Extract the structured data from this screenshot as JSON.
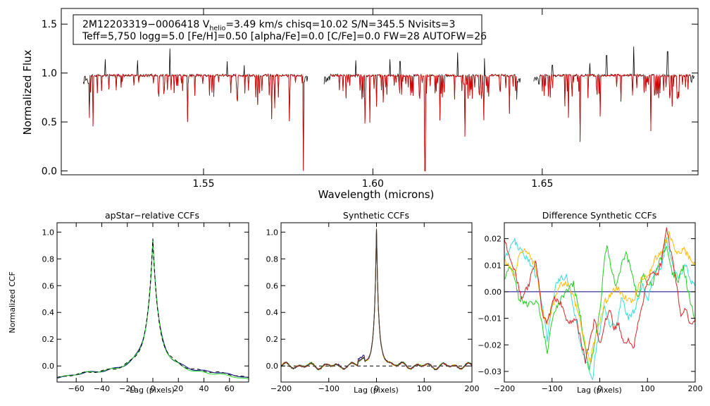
{
  "chart_data": [
    {
      "type": "line",
      "id": "spectrum",
      "title": "",
      "xlabel": "Wavelength (microns)",
      "ylabel": "Normalized Flux",
      "xlim": [
        1.508,
        1.696
      ],
      "ylim": [
        -0.04,
        1.66
      ],
      "xticks": [
        1.55,
        1.6,
        1.65
      ],
      "xtick_labels": [
        "1.55",
        "1.60",
        "1.65"
      ],
      "yticks": [
        0.0,
        0.5,
        1.0,
        1.5
      ],
      "ytick_labels": [
        "0.0",
        "0.5",
        "1.0",
        "1.5"
      ],
      "info_line1": {
        "a": "2M12203319−0006418  V",
        "sub": "helio",
        "b": "=3.49 km/s  chisq=10.02  S/N=345.5  Nvisits=3"
      },
      "info_line2": "Teff=5,750 logg=5.0 [Fe/H]=0.50 [alpha/Fe]=0.0 [C/Fe]=0.0 FW=28 AUTOFW=26",
      "chips": [
        [
          1.5145,
          1.5808
        ],
        [
          1.5856,
          1.6437
        ],
        [
          1.6475,
          1.695
        ]
      ],
      "deep_absorptions": [
        1.5795,
        1.58,
        1.6154,
        1.6433
      ],
      "emission_spikes": [
        [
          1.521,
          1.14
        ],
        [
          1.5305,
          1.13
        ],
        [
          1.54,
          1.25
        ],
        [
          1.557,
          1.12
        ],
        [
          1.562,
          1.08
        ],
        [
          1.595,
          1.13
        ],
        [
          1.605,
          1.14
        ],
        [
          1.608,
          1.12
        ],
        [
          1.625,
          1.21
        ],
        [
          1.633,
          1.15
        ],
        [
          1.653,
          1.08
        ],
        [
          1.664,
          1.1
        ],
        [
          1.669,
          1.18
        ],
        [
          1.677,
          1.27
        ],
        [
          1.687,
          1.22
        ]
      ],
      "series": [
        {
          "name": "observed",
          "color": "#000000"
        },
        {
          "name": "model",
          "color": "#dd0000"
        }
      ]
    },
    {
      "type": "line",
      "id": "apstar_ccf",
      "title": "apStar−relative CCFs",
      "xlabel": "Lag (pixels)",
      "ylabel": "Normalized CCF",
      "xlim": [
        -75,
        75
      ],
      "ylim": [
        -0.12,
        1.07
      ],
      "xticks": [
        -60,
        -40,
        -20,
        0,
        20,
        40,
        60
      ],
      "xtick_labels": [
        "−60",
        "−40",
        "−20",
        "0",
        "20",
        "40",
        "60"
      ],
      "yticks": [
        0.0,
        0.2,
        0.4,
        0.6,
        0.8,
        1.0
      ],
      "ytick_labels": [
        "0.0",
        "0.2",
        "0.4",
        "0.6",
        "0.8",
        "1.0"
      ],
      "series": [
        {
          "name": "ccf-blue",
          "color": "#00008b",
          "peak": 1.0
        },
        {
          "name": "ccf-green",
          "color": "#22dd22",
          "peak": 0.99
        },
        {
          "name": "ccf-combined",
          "color": "#000000",
          "dashed": true,
          "peak": 0.995
        }
      ]
    },
    {
      "type": "line",
      "id": "synthetic_ccf",
      "title": "Synthetic CCFs",
      "xlabel": "Lag (pixels)",
      "ylabel": "",
      "xlim": [
        -200,
        200
      ],
      "ylim": [
        -0.12,
        1.07
      ],
      "xticks": [
        -200,
        -100,
        0,
        100,
        200
      ],
      "xtick_labels": [
        "−200",
        "−100",
        "0",
        "100",
        "200"
      ],
      "yticks": [
        0.0,
        0.2,
        0.4,
        0.6,
        0.8,
        1.0
      ],
      "ytick_labels": [
        "0.0",
        "0.2",
        "0.4",
        "0.6",
        "0.8",
        "1.0"
      ],
      "baseline": 0.0,
      "series": [
        {
          "name": "visit-1",
          "color": "#00008b"
        },
        {
          "name": "visit-2",
          "color": "#22dd22"
        },
        {
          "name": "visit-3",
          "color": "#ffcc00"
        },
        {
          "name": "visit-4",
          "color": "#dd2222"
        },
        {
          "name": "visit-5",
          "color": "#333333"
        }
      ]
    },
    {
      "type": "line",
      "id": "diff_ccf",
      "title": "Difference Synthetic CCFs",
      "xlabel": "Lag (pixels)",
      "ylabel": "",
      "xlim": [
        -200,
        200
      ],
      "ylim": [
        -0.034,
        0.026
      ],
      "xticks": [
        -200,
        -100,
        0,
        100,
        200
      ],
      "xtick_labels": [
        "−200",
        "−100",
        "0",
        "100",
        "200"
      ],
      "yticks": [
        -0.03,
        -0.02,
        -0.01,
        0.0,
        0.01,
        0.02
      ],
      "ytick_labels": [
        "−0.03",
        "−0.02",
        "−0.01",
        "0.00",
        "0.01",
        "0.02"
      ],
      "zero_line_color": "#00008b",
      "series": [
        {
          "name": "diff-cyan",
          "color": "#33dddd",
          "points": [
            [
              -200,
              0.012
            ],
            [
              -180,
              0.02
            ],
            [
              -165,
              0.015
            ],
            [
              -150,
              0.012
            ],
            [
              -130,
              0.005
            ],
            [
              -115,
              -0.012
            ],
            [
              -110,
              -0.018
            ],
            [
              -100,
              -0.005
            ],
            [
              -90,
              0.004
            ],
            [
              -70,
              0.006
            ],
            [
              -55,
              -0.006
            ],
            [
              -40,
              -0.02
            ],
            [
              -25,
              -0.028
            ],
            [
              -15,
              -0.033
            ],
            [
              -8,
              -0.022
            ],
            [
              0,
              -0.015
            ],
            [
              10,
              -0.006
            ],
            [
              20,
              -0.012
            ],
            [
              35,
              -0.014
            ],
            [
              45,
              -0.002
            ],
            [
              60,
              -0.01
            ],
            [
              75,
              -0.006
            ],
            [
              90,
              0.003
            ],
            [
              100,
              -0.004
            ],
            [
              115,
              0.008
            ],
            [
              130,
              0.01
            ],
            [
              140,
              0.02
            ],
            [
              150,
              0.012
            ],
            [
              165,
              0.006
            ],
            [
              180,
              0.01
            ],
            [
              192,
              0.004
            ],
            [
              200,
              0.002
            ]
          ]
        },
        {
          "name": "diff-green",
          "color": "#22cc22",
          "points": [
            [
              -200,
              0.005
            ],
            [
              -185,
              0.01
            ],
            [
              -170,
              -0.002
            ],
            [
              -150,
              -0.005
            ],
            [
              -130,
              -0.004
            ],
            [
              -115,
              -0.018
            ],
            [
              -110,
              -0.024
            ],
            [
              -100,
              -0.01
            ],
            [
              -85,
              -0.004
            ],
            [
              -70,
              0.0
            ],
            [
              -55,
              0.003
            ],
            [
              -40,
              -0.01
            ],
            [
              -30,
              -0.022
            ],
            [
              -22,
              -0.03
            ],
            [
              -10,
              -0.018
            ],
            [
              0,
              -0.008
            ],
            [
              10,
              0.012
            ],
            [
              15,
              0.018
            ],
            [
              25,
              0.008
            ],
            [
              35,
              0.002
            ],
            [
              45,
              0.01
            ],
            [
              55,
              0.015
            ],
            [
              65,
              0.008
            ],
            [
              80,
              -0.002
            ],
            [
              90,
              0.006
            ],
            [
              110,
              0.002
            ],
            [
              125,
              0.012
            ],
            [
              140,
              0.016
            ],
            [
              150,
              0.008
            ],
            [
              165,
              0.004
            ],
            [
              175,
              0.01
            ],
            [
              190,
              -0.004
            ],
            [
              200,
              -0.01
            ]
          ]
        },
        {
          "name": "diff-yellow",
          "color": "#ffbb00",
          "points": [
            [
              -200,
              0.012
            ],
            [
              -180,
              0.006
            ],
            [
              -165,
              0.016
            ],
            [
              -150,
              0.014
            ],
            [
              -135,
              0.01
            ],
            [
              -120,
              -0.008
            ],
            [
              -110,
              -0.012
            ],
            [
              -100,
              -0.006
            ],
            [
              -85,
              0.002
            ],
            [
              -70,
              0.004
            ],
            [
              -55,
              -0.002
            ],
            [
              -40,
              -0.012
            ],
            [
              -30,
              -0.02
            ],
            [
              -20,
              -0.026
            ],
            [
              -10,
              -0.018
            ],
            [
              0,
              -0.012
            ],
            [
              10,
              -0.004
            ],
            [
              20,
              -0.002
            ],
            [
              35,
              0.002
            ],
            [
              50,
              -0.002
            ],
            [
              70,
              -0.004
            ],
            [
              85,
              0.004
            ],
            [
              100,
              0.006
            ],
            [
              115,
              0.012
            ],
            [
              130,
              0.015
            ],
            [
              145,
              0.022
            ],
            [
              160,
              0.014
            ],
            [
              175,
              0.016
            ],
            [
              190,
              0.012
            ],
            [
              200,
              0.01
            ]
          ]
        },
        {
          "name": "diff-red",
          "color": "#dd2222",
          "points": [
            [
              -200,
              0.02
            ],
            [
              -190,
              0.014
            ],
            [
              -175,
              0.006
            ],
            [
              -165,
              -0.002
            ],
            [
              -150,
              0.002
            ],
            [
              -135,
              0.012
            ],
            [
              -120,
              -0.008
            ],
            [
              -110,
              -0.012
            ],
            [
              -95,
              -0.002
            ],
            [
              -80,
              -0.005
            ],
            [
              -70,
              -0.01
            ],
            [
              -60,
              -0.012
            ],
            [
              -50,
              -0.01
            ],
            [
              -40,
              -0.018
            ],
            [
              -30,
              -0.026
            ],
            [
              -20,
              -0.018
            ],
            [
              -10,
              -0.01
            ],
            [
              0,
              -0.02
            ],
            [
              10,
              -0.012
            ],
            [
              20,
              -0.006
            ],
            [
              30,
              -0.014
            ],
            [
              40,
              -0.012
            ],
            [
              50,
              -0.02
            ],
            [
              60,
              -0.018
            ],
            [
              70,
              -0.022
            ],
            [
              80,
              -0.012
            ],
            [
              90,
              -0.004
            ],
            [
              100,
              0.004
            ],
            [
              110,
              0.008
            ],
            [
              120,
              0.006
            ],
            [
              130,
              0.012
            ],
            [
              140,
              0.024
            ],
            [
              150,
              0.014
            ],
            [
              160,
              0.004
            ],
            [
              170,
              -0.01
            ],
            [
              180,
              -0.006
            ],
            [
              190,
              -0.012
            ],
            [
              200,
              -0.01
            ]
          ]
        }
      ]
    }
  ]
}
